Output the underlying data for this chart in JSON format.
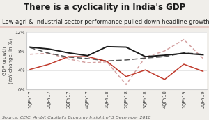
{
  "title": "There is a cyclicality in India's GDP",
  "subtitle": "Low agri & Industrial sector performance pulled down headline growth in 2 Q FY 19",
  "source": "Source: CEIC; Ambit Capital's Economy Insight of 3 December 2018",
  "ylabel": "GDP growth\n(YoY change, in %)",
  "x_labels": [
    "1QFY17",
    "2QFY17",
    "3QFY17",
    "4QFY17",
    "1QFY18",
    "2QFY18",
    "3QFY18",
    "4QFY18",
    "1QFY19",
    "2QFY19"
  ],
  "gva": [
    8.8,
    7.6,
    6.8,
    6.5,
    6.0,
    6.2,
    6.6,
    6.9,
    7.7,
    7.4
  ],
  "agri": [
    4.2,
    5.3,
    6.9,
    6.9,
    5.9,
    2.7,
    4.1,
    2.1,
    5.3,
    3.8
  ],
  "services": [
    8.9,
    8.5,
    7.7,
    7.1,
    9.0,
    8.9,
    6.9,
    7.2,
    7.6,
    7.3
  ],
  "industries": [
    7.4,
    7.6,
    6.4,
    5.6,
    5.8,
    1.0,
    6.8,
    8.1,
    10.5,
    6.5
  ],
  "gva_color": "#555555",
  "agri_color": "#c0392b",
  "services_color": "#1a1a1a",
  "industries_color": "#d4a0a0",
  "ylim_min": 0,
  "ylim_max": 12,
  "ytick_vals": [
    0,
    4,
    8,
    12
  ],
  "ytick_labels": [
    "0%",
    "4%",
    "8%",
    "12%"
  ],
  "bg_color": "#f0eeea",
  "plot_bg": "#ffffff",
  "subtitle_color": "#222222",
  "subtitle_underline_color": "#c0392b",
  "title_fontsize": 8.5,
  "subtitle_fontsize": 6.0,
  "axis_fontsize": 5.0,
  "tick_fontsize": 4.8,
  "legend_fontsize": 5.5,
  "source_fontsize": 4.5
}
